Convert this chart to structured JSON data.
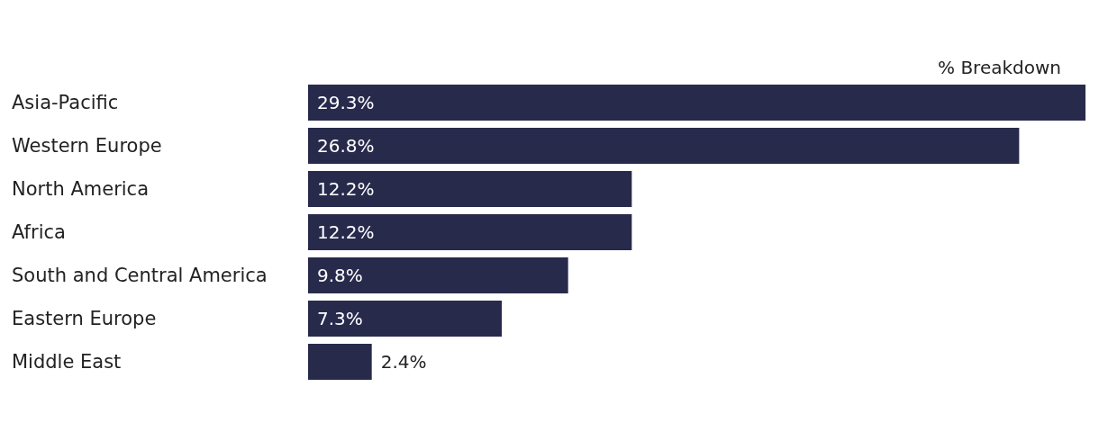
{
  "chart_data": {
    "type": "bar",
    "orientation": "horizontal",
    "title": "% Breakdown",
    "categories": [
      "Asia-Pacific",
      "Western Europe",
      "North America",
      "Africa",
      "South and Central America",
      "Eastern Europe",
      "Middle East"
    ],
    "values": [
      29.3,
      26.8,
      12.2,
      12.2,
      9.8,
      7.3,
      2.4
    ],
    "value_labels": [
      "29.3%",
      "26.8%",
      "12.2%",
      "12.2%",
      "9.8%",
      "7.3%",
      "2.4%"
    ],
    "color": "#282a4c"
  }
}
